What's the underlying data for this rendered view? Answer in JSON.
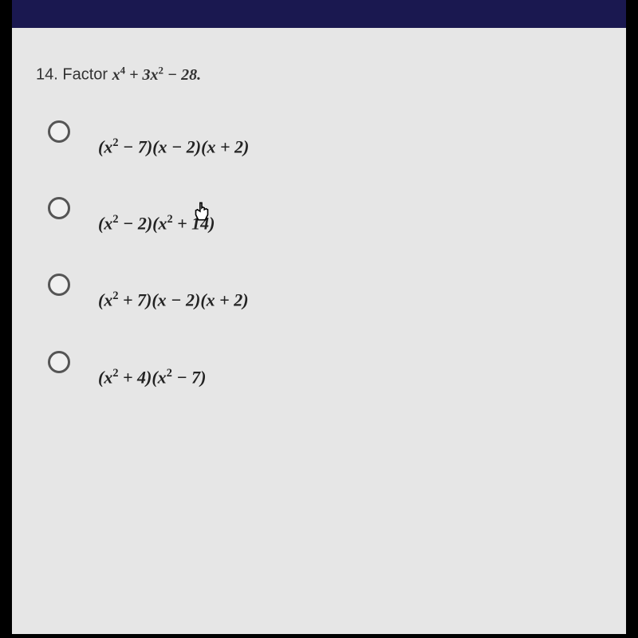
{
  "question": {
    "number": "14.",
    "prompt": "Factor",
    "expression_html": "x<sup>4</sup> + 3x<sup>2</sup> − 28."
  },
  "options": [
    {
      "html": "(x<sup>2</sup> − 7)(x − 2)(x + 2)"
    },
    {
      "html": "(x<sup>2</sup> − 2)(x<sup>2</sup> + 14)"
    },
    {
      "html": "(x<sup>2</sup> + 7)(x − 2)(x + 2)"
    },
    {
      "html": "(x<sup>2</sup> + 4)(x<sup>2</sup> − 7)"
    }
  ],
  "colors": {
    "panel_bg": "#e6e6e6",
    "status_bar": "#1a1850",
    "radio_border": "#555555",
    "text": "#222222"
  }
}
